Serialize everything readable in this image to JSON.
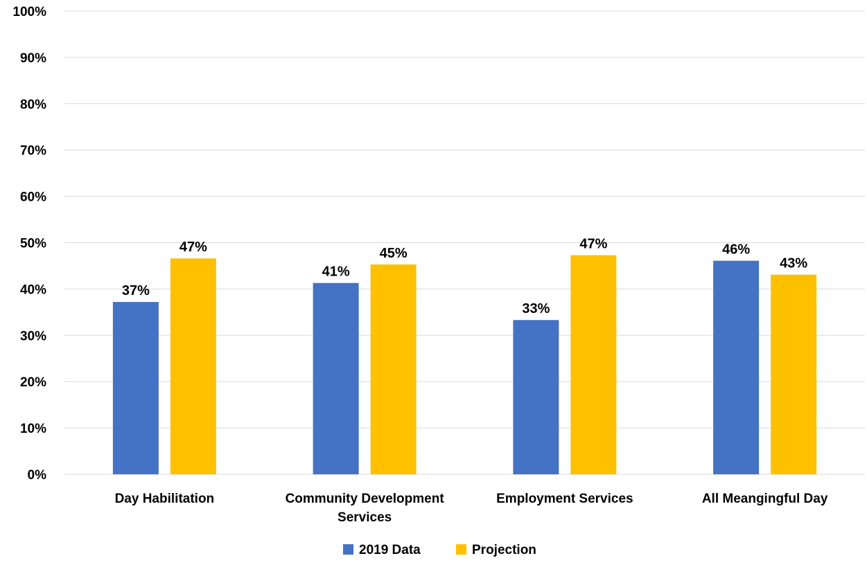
{
  "chart_data": {
    "type": "bar",
    "categories": [
      [
        "Day Habilitation"
      ],
      [
        "Community Development",
        "Services"
      ],
      [
        "Employment Services"
      ],
      [
        "All Meangingful Day"
      ]
    ],
    "series": [
      {
        "name": "2019 Data",
        "color": "#4472C4",
        "values": [
          37.2,
          41.3,
          33.3,
          46.1
        ],
        "labels": [
          "37%",
          "41%",
          "33%",
          "46%"
        ]
      },
      {
        "name": "Projection",
        "color": "#FFC000",
        "values": [
          46.6,
          45.3,
          47.3,
          43.1
        ],
        "labels": [
          "47%",
          "45%",
          "47%",
          "43%"
        ]
      }
    ],
    "y_ticks": [
      {
        "value": 0,
        "label": "0%"
      },
      {
        "value": 10,
        "label": "10%"
      },
      {
        "value": 20,
        "label": "20%"
      },
      {
        "value": 30,
        "label": "30%"
      },
      {
        "value": 40,
        "label": "40%"
      },
      {
        "value": 50,
        "label": "50%"
      },
      {
        "value": 60,
        "label": "60%"
      },
      {
        "value": 70,
        "label": "70%"
      },
      {
        "value": 80,
        "label": "80%"
      },
      {
        "value": 90,
        "label": "90%"
      },
      {
        "value": 100,
        "label": "100%"
      }
    ],
    "ylim": [
      0,
      100
    ],
    "grid": true,
    "gridline_color": "#D9D9D9",
    "legend_position": "bottom",
    "title": "",
    "xlabel": "",
    "ylabel": ""
  }
}
